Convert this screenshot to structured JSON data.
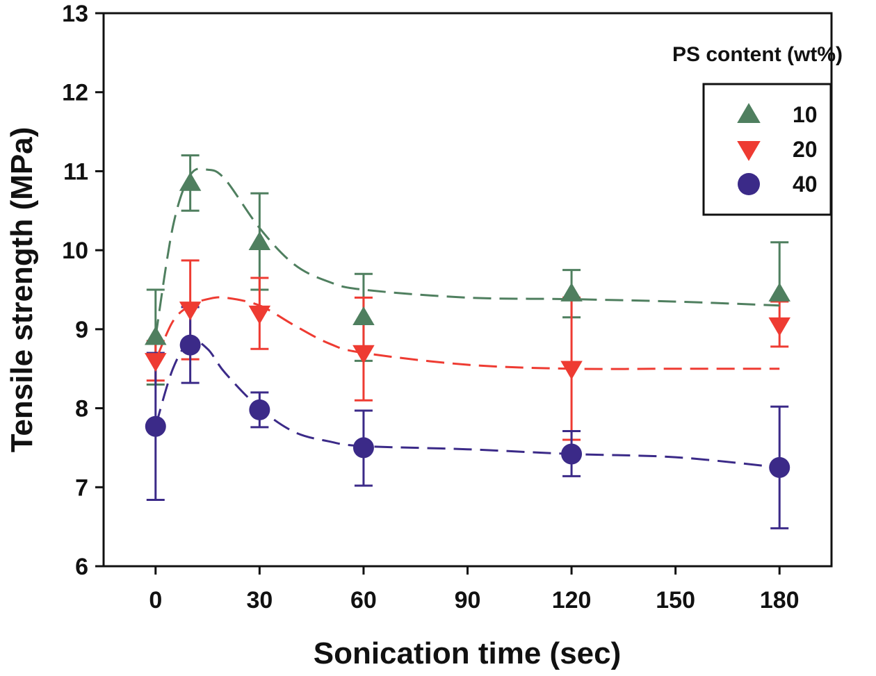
{
  "chart_data": {
    "type": "scatter",
    "title": "",
    "xlabel": "Sonication time (sec)",
    "ylabel": "Tensile strength (MPa)",
    "xlim": [
      -15,
      195
    ],
    "ylim": [
      6,
      13
    ],
    "xticks": [
      "0",
      "30",
      "60",
      "90",
      "120",
      "150",
      "180"
    ],
    "yticks": [
      "6",
      "7",
      "8",
      "9",
      "10",
      "11",
      "12",
      "13"
    ],
    "grid": false,
    "legend": {
      "title": "PS content (wt%)",
      "placement": "top-right"
    },
    "series": [
      {
        "name": "10",
        "marker": "triangle-up",
        "color": "#4f7f5f",
        "line_style": "dashed",
        "x": [
          0,
          10,
          30,
          60,
          120,
          180
        ],
        "y": [
          8.9,
          10.85,
          10.1,
          9.15,
          9.45,
          9.45
        ],
        "err_low": [
          8.3,
          10.5,
          9.5,
          8.6,
          9.15,
          9.35
        ],
        "err_high": [
          9.5,
          11.2,
          10.72,
          9.7,
          9.75,
          10.1
        ],
        "trend": {
          "x": [
            0,
            5,
            10,
            15,
            20,
            30,
            40,
            50,
            60,
            90,
            120,
            150,
            180
          ],
          "y": [
            8.9,
            10.3,
            10.95,
            11.02,
            10.9,
            10.28,
            9.82,
            9.6,
            9.5,
            9.4,
            9.38,
            9.35,
            9.3
          ]
        }
      },
      {
        "name": "20",
        "marker": "triangle-down",
        "color": "#ee3b32",
        "line_style": "dashed",
        "x": [
          0,
          10,
          30,
          60,
          120,
          180
        ],
        "y": [
          8.6,
          9.25,
          9.2,
          8.7,
          8.5,
          9.05
        ],
        "err_low": [
          8.35,
          8.62,
          8.75,
          8.1,
          7.6,
          8.78
        ],
        "err_high": [
          8.85,
          9.87,
          9.65,
          9.4,
          9.4,
          9.35
        ],
        "trend": {
          "x": [
            0,
            5,
            10,
            15,
            20,
            30,
            40,
            50,
            60,
            90,
            120,
            150,
            180
          ],
          "y": [
            8.6,
            9.1,
            9.3,
            9.38,
            9.4,
            9.3,
            9.05,
            8.82,
            8.7,
            8.55,
            8.5,
            8.5,
            8.5
          ]
        }
      },
      {
        "name": "40",
        "marker": "circle",
        "color": "#3b2a88",
        "line_style": "dashed",
        "x": [
          0,
          10,
          30,
          60,
          120,
          180
        ],
        "y": [
          7.77,
          8.8,
          7.98,
          7.5,
          7.42,
          7.25
        ],
        "err_low": [
          6.84,
          8.32,
          7.76,
          7.02,
          7.14,
          6.48
        ],
        "err_high": [
          8.7,
          9.28,
          8.2,
          7.97,
          7.71,
          8.02
        ],
        "trend": {
          "x": [
            0,
            5,
            10,
            15,
            20,
            30,
            40,
            50,
            60,
            90,
            120,
            150,
            180
          ],
          "y": [
            7.77,
            8.5,
            8.85,
            8.75,
            8.45,
            8.0,
            7.7,
            7.58,
            7.52,
            7.48,
            7.42,
            7.38,
            7.25
          ]
        }
      }
    ]
  }
}
